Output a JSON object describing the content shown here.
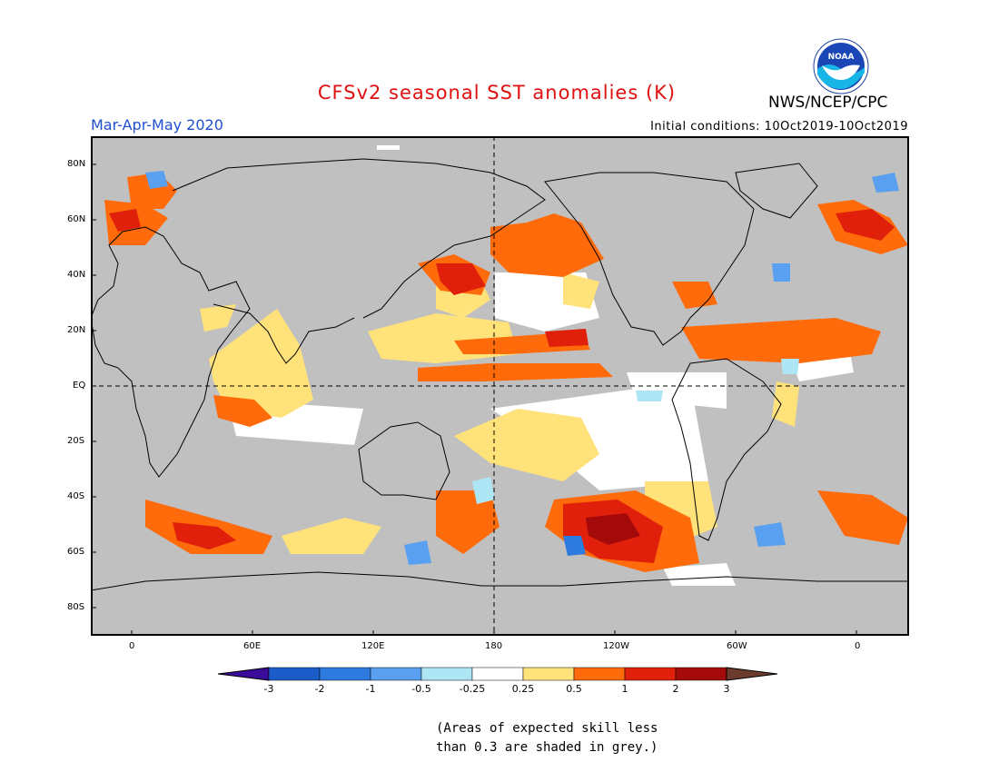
{
  "header": {
    "title": "CFSv2 seasonal SST anomalies (K)",
    "agency": "NWS/NCEP/CPC",
    "period": "Mar-Apr-May 2020",
    "initial_conditions": "Initial conditions: 10Oct2019-10Oct2019",
    "logo_text": "NOAA"
  },
  "map": {
    "lat_labels": [
      "80N",
      "60N",
      "40N",
      "20N",
      "EQ",
      "20S",
      "40S",
      "60S",
      "80S"
    ],
    "lon_labels": [
      "0",
      "60E",
      "120E",
      "180",
      "120W",
      "60W",
      "0"
    ],
    "land_color": "#000000",
    "low_skill_color": "#c0c0c0"
  },
  "colorbar": {
    "levels": [
      "-3",
      "-2",
      "-1",
      "-0.5",
      "-0.25",
      "0.25",
      "0.5",
      "1",
      "2",
      "3"
    ],
    "colors": [
      "#3a0a9a",
      "#1a5cc8",
      "#2e7be0",
      "#5aa0f0",
      "#aee6f6",
      "#ffffff",
      "#ffe27a",
      "#ff6a0a",
      "#e0200a",
      "#a50a0a",
      "#6b3b2e"
    ]
  },
  "note": {
    "line1": "(Areas of expected skill less",
    "line2": "than 0.3 are shaded in grey.)"
  }
}
